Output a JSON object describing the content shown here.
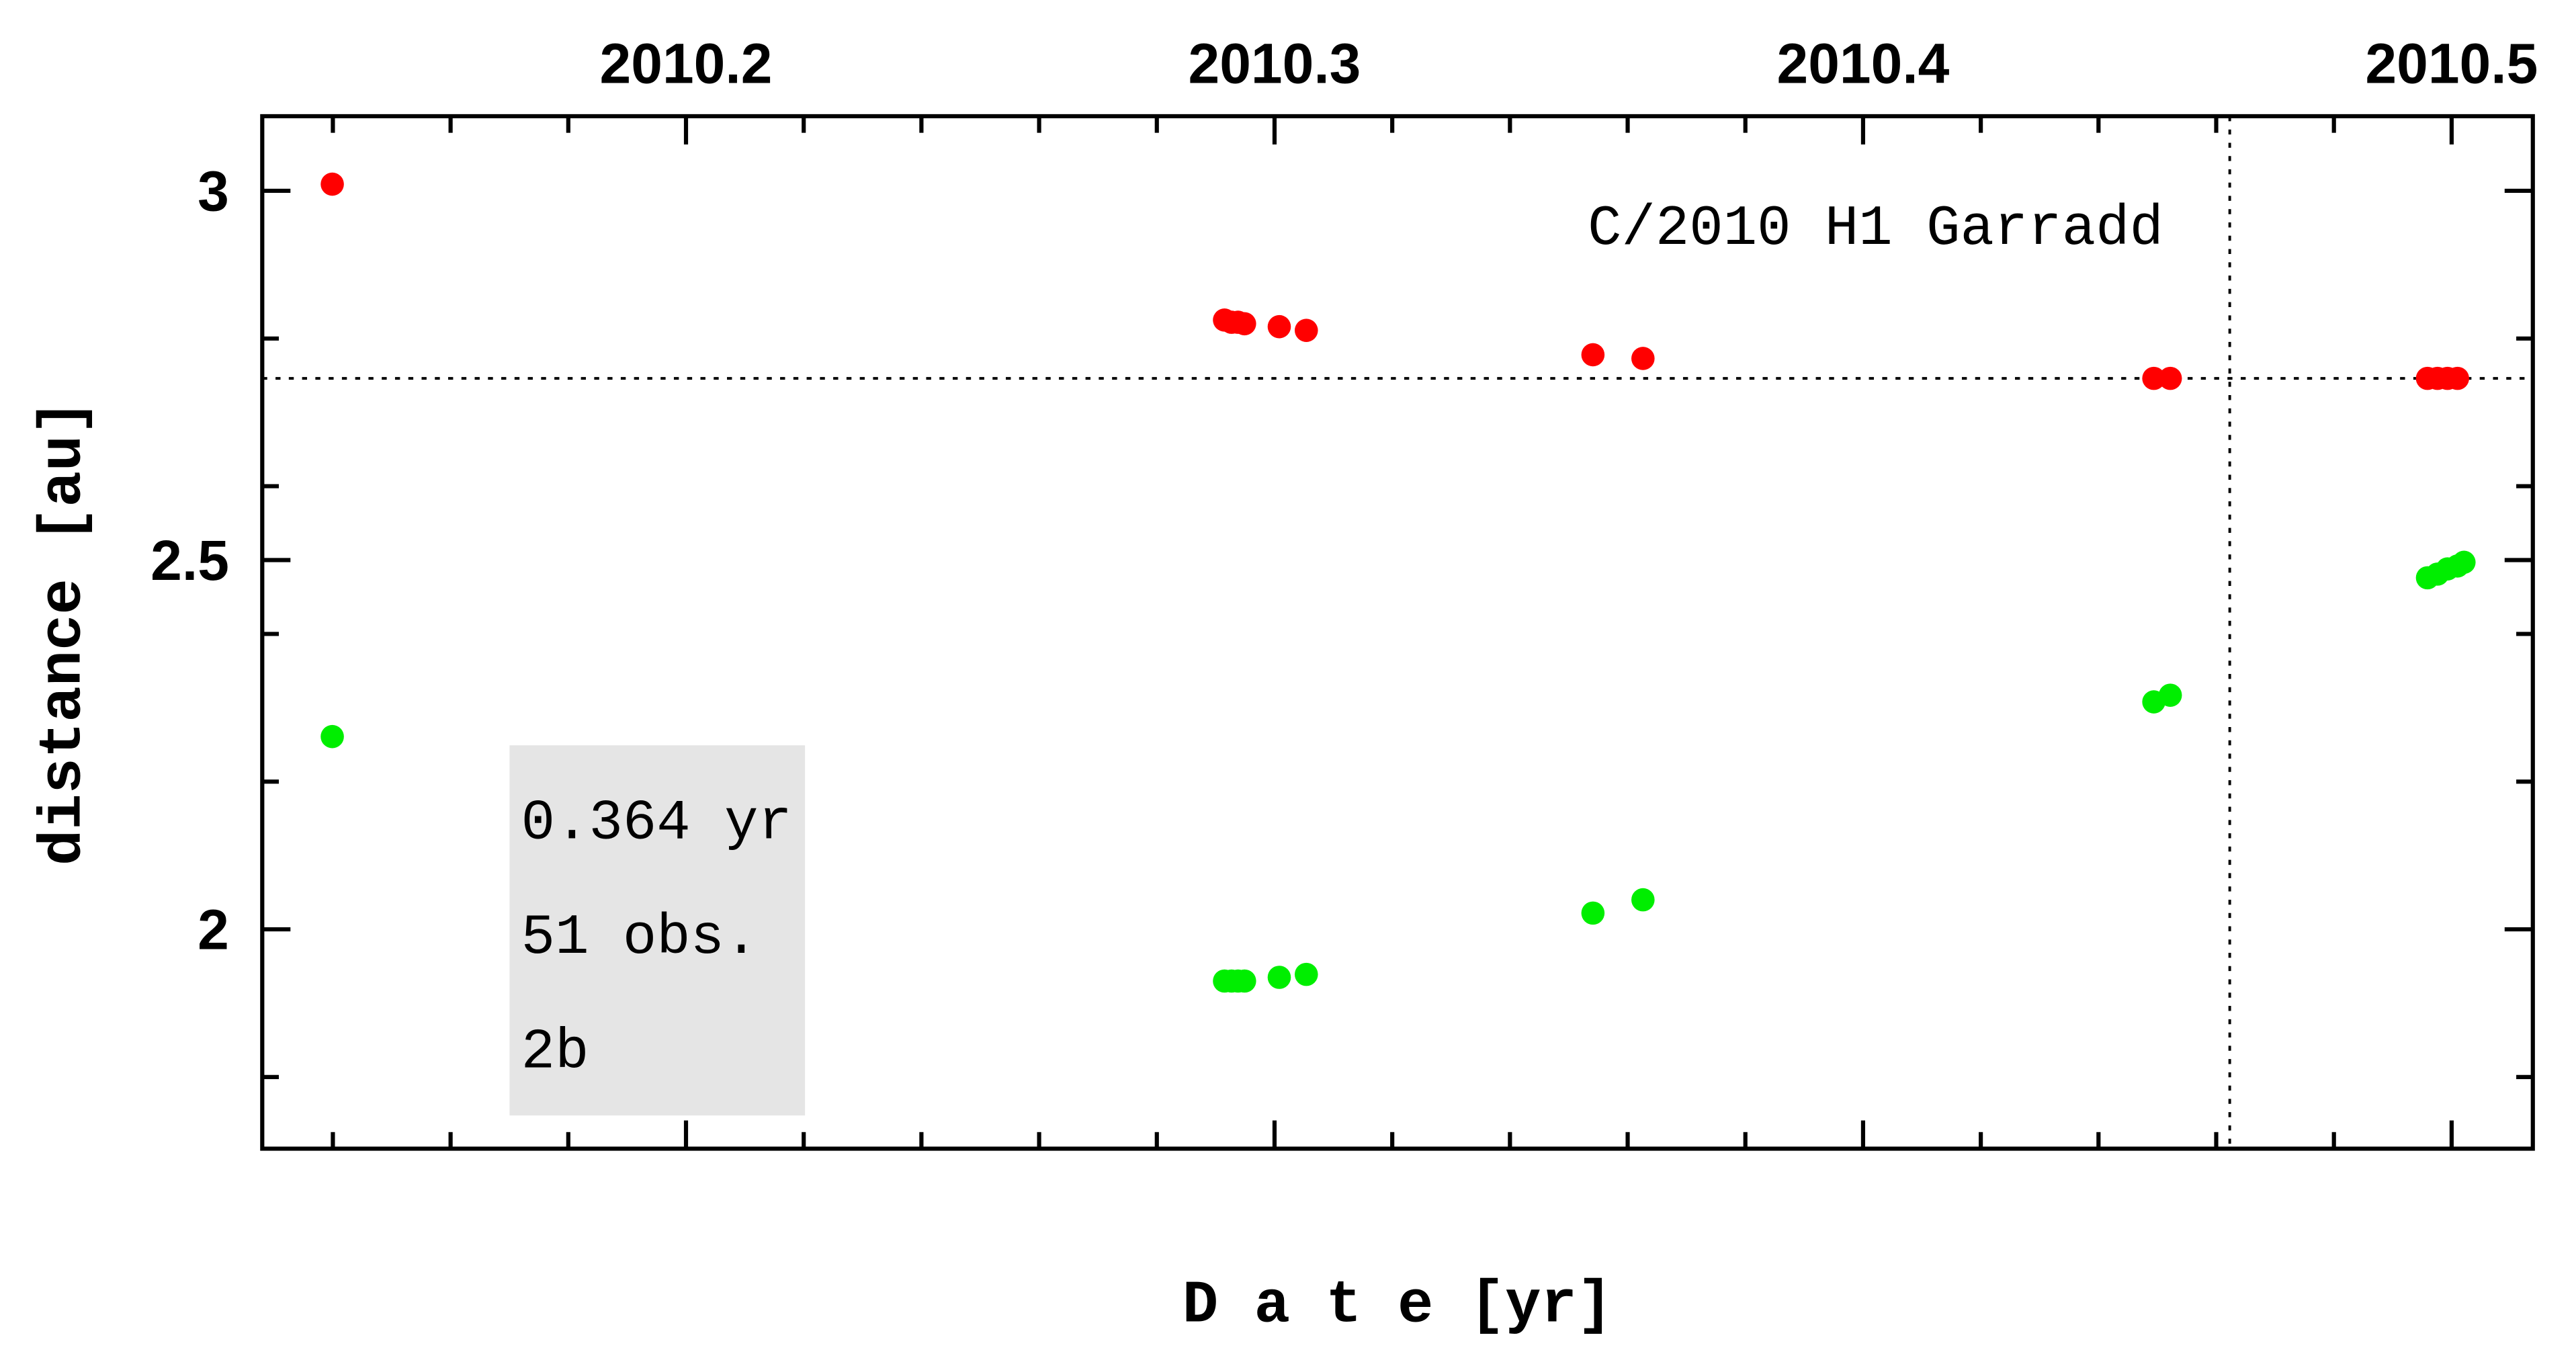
{
  "chart_data": {
    "type": "scatter",
    "xlabel": "D a t e [yr]",
    "ylabel": "distance [au]",
    "xlim": [
      2010.128,
      2010.5138
    ],
    "ylim": [
      1.703,
      3.101
    ],
    "xticks": [
      2010.2,
      2010.3,
      2010.4,
      2010.5
    ],
    "xminorticks": [
      2010.14,
      2010.16,
      2010.18,
      2010.22,
      2010.24,
      2010.26,
      2010.28,
      2010.32,
      2010.34,
      2010.36,
      2010.38,
      2010.42,
      2010.44,
      2010.46,
      2010.48
    ],
    "yticks": [
      2,
      2.5,
      3
    ],
    "yminorticks": [
      1.8,
      2.2,
      2.4,
      2.6,
      2.8
    ],
    "hline": 2.746,
    "vline": 2010.4623,
    "annotation": "C/2010 H1 Garradd",
    "info": [
      "0.364 yr",
      "51 obs.",
      "2b"
    ],
    "info_color": "#e5e5e5",
    "series": [
      {
        "color": "#ff0000",
        "x": [
          2010.1399,
          2010.2915,
          2010.2927,
          2010.2938,
          2010.2949,
          2010.3008,
          2010.3054,
          2010.3541,
          2010.3626,
          2010.4494,
          2010.4522,
          2010.4959,
          2010.4976,
          2010.4993,
          2010.501
        ],
        "values": [
          3.009,
          2.825,
          2.822,
          2.822,
          2.82,
          2.816,
          2.811,
          2.778,
          2.773,
          2.746,
          2.746,
          2.746,
          2.746,
          2.746,
          2.746
        ]
      },
      {
        "color": "#00ee00",
        "x": [
          2010.1399,
          2010.2915,
          2010.2927,
          2010.2938,
          2010.2949,
          2010.3008,
          2010.3054,
          2010.3541,
          2010.3626,
          2010.4494,
          2010.4522,
          2010.4959,
          2010.4976,
          2010.4993,
          2010.501,
          2010.5021
        ],
        "values": [
          2.261,
          1.93,
          1.93,
          1.93,
          1.93,
          1.935,
          1.939,
          2.022,
          2.04,
          2.308,
          2.317,
          2.476,
          2.481,
          2.488,
          2.492,
          2.497
        ]
      }
    ]
  }
}
